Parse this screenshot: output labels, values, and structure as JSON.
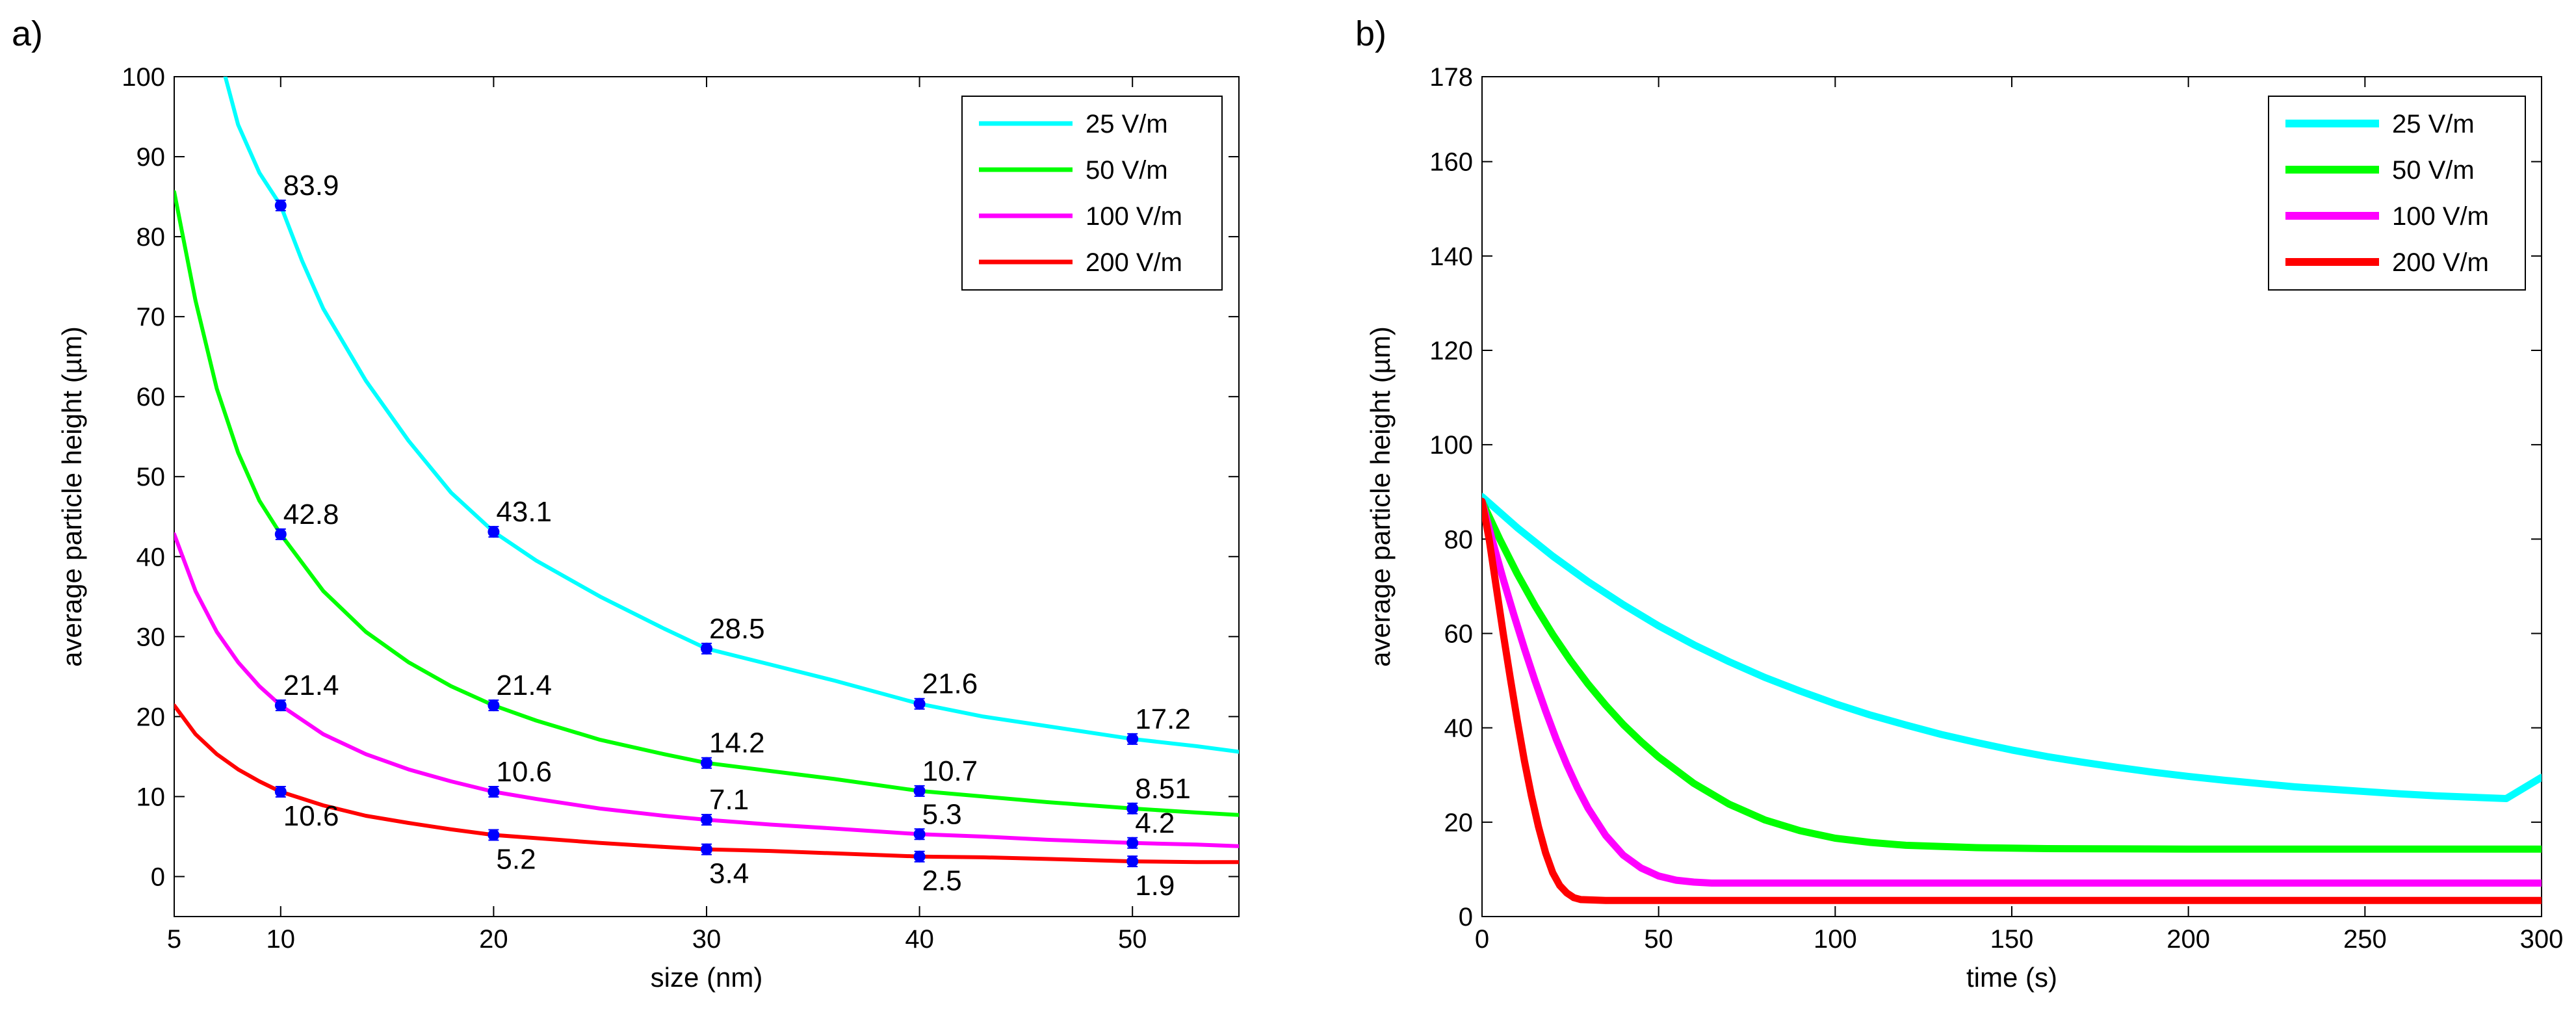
{
  "chart_data": [
    {
      "type": "line",
      "panel_label": "a)",
      "xlabel": "size (nm)",
      "ylabel": "average particle height (µm)",
      "xlim": [
        5,
        55
      ],
      "ylim": [
        -5,
        100
      ],
      "xticks": [
        5,
        10,
        20,
        30,
        40,
        50
      ],
      "yticks": [
        0,
        10,
        20,
        30,
        40,
        50,
        60,
        70,
        80,
        90,
        100
      ],
      "legend_position": "top-right",
      "series": [
        {
          "name": "25 V/m",
          "color": "#00ffff",
          "x": [
            7.4,
            8,
            9,
            10,
            11,
            12,
            14,
            16,
            18,
            20,
            22,
            25,
            28,
            30,
            33,
            36,
            40,
            43,
            46,
            50,
            53,
            55
          ],
          "y": [
            100,
            94,
            88,
            83.9,
            77,
            71,
            62,
            54.5,
            48,
            43.1,
            39.5,
            35,
            31,
            28.5,
            26.5,
            24.5,
            21.6,
            20,
            18.8,
            17.2,
            16.3,
            15.6
          ]
        },
        {
          "name": "50 V/m",
          "color": "#00ff00",
          "x": [
            5,
            6,
            7,
            8,
            9,
            10,
            12,
            14,
            16,
            18,
            20,
            22,
            25,
            28,
            30,
            33,
            36,
            40,
            43,
            46,
            50,
            53,
            55
          ],
          "y": [
            85.6,
            72,
            61,
            53,
            47,
            42.8,
            35.7,
            30.6,
            26.8,
            23.8,
            21.4,
            19.5,
            17.1,
            15.3,
            14.2,
            13.2,
            12.2,
            10.7,
            10,
            9.3,
            8.51,
            8,
            7.7
          ]
        },
        {
          "name": "100 V/m",
          "color": "#ff00ff",
          "x": [
            5,
            6,
            7,
            8,
            9,
            10,
            12,
            14,
            16,
            18,
            20,
            22,
            25,
            28,
            30,
            33,
            36,
            40,
            43,
            46,
            50,
            53,
            55
          ],
          "y": [
            42.8,
            35.7,
            30.6,
            26.8,
            23.8,
            21.4,
            17.8,
            15.3,
            13.4,
            11.9,
            10.6,
            9.7,
            8.5,
            7.6,
            7.1,
            6.5,
            6,
            5.3,
            5,
            4.6,
            4.2,
            4,
            3.8
          ]
        },
        {
          "name": "200 V/m",
          "color": "#ff0000",
          "x": [
            5,
            6,
            7,
            8,
            9,
            10,
            12,
            14,
            16,
            18,
            20,
            22,
            25,
            28,
            30,
            33,
            36,
            40,
            43,
            46,
            50,
            53,
            55
          ],
          "y": [
            21.4,
            17.8,
            15.3,
            13.4,
            11.9,
            10.6,
            8.9,
            7.6,
            6.7,
            5.9,
            5.2,
            4.8,
            4.2,
            3.7,
            3.4,
            3.2,
            2.9,
            2.5,
            2.4,
            2.2,
            1.9,
            1.8,
            1.8
          ]
        }
      ],
      "markers": [
        {
          "x": 10,
          "y": 83.9,
          "label": "83.9",
          "pos": "above"
        },
        {
          "x": 20,
          "y": 43.1,
          "label": "43.1",
          "pos": "above"
        },
        {
          "x": 30,
          "y": 28.5,
          "label": "28.5",
          "pos": "above"
        },
        {
          "x": 40,
          "y": 21.6,
          "label": "21.6",
          "pos": "above"
        },
        {
          "x": 50,
          "y": 17.2,
          "label": "17.2",
          "pos": "above"
        },
        {
          "x": 10,
          "y": 42.8,
          "label": "42.8",
          "pos": "above"
        },
        {
          "x": 20,
          "y": 21.4,
          "label": "21.4",
          "pos": "above"
        },
        {
          "x": 30,
          "y": 14.2,
          "label": "14.2",
          "pos": "above"
        },
        {
          "x": 40,
          "y": 10.7,
          "label": "10.7",
          "pos": "above"
        },
        {
          "x": 50,
          "y": 8.51,
          "label": "8.51",
          "pos": "above"
        },
        {
          "x": 10,
          "y": 21.4,
          "label": "21.4",
          "pos": "above"
        },
        {
          "x": 20,
          "y": 10.6,
          "label": "10.6",
          "pos": "above"
        },
        {
          "x": 30,
          "y": 7.1,
          "label": "7.1",
          "pos": "above"
        },
        {
          "x": 40,
          "y": 5.3,
          "label": "5.3",
          "pos": "above"
        },
        {
          "x": 50,
          "y": 4.2,
          "label": "4.2",
          "pos": "above"
        },
        {
          "x": 10,
          "y": 10.6,
          "label": "10.6",
          "pos": "below"
        },
        {
          "x": 20,
          "y": 5.2,
          "label": "5.2",
          "pos": "below"
        },
        {
          "x": 30,
          "y": 3.4,
          "label": "3.4",
          "pos": "below"
        },
        {
          "x": 40,
          "y": 2.5,
          "label": "2.5",
          "pos": "below"
        },
        {
          "x": 50,
          "y": 1.9,
          "label": "1.9",
          "pos": "below"
        }
      ],
      "marker_color": "#0000ff"
    },
    {
      "type": "line",
      "panel_label": "b)",
      "xlabel": "time (s)",
      "ylabel": "average particle height (µm)",
      "xlim": [
        0,
        300
      ],
      "ylim": [
        0,
        178
      ],
      "xticks": [
        0,
        50,
        100,
        150,
        200,
        250,
        300
      ],
      "yticks": [
        0,
        20,
        40,
        60,
        80,
        100,
        120,
        140,
        160,
        178
      ],
      "legend_position": "top-right",
      "series": [
        {
          "name": "25 V/m",
          "color": "#00ffff",
          "x": [
            0,
            10,
            20,
            30,
            40,
            50,
            60,
            70,
            80,
            90,
            100,
            110,
            120,
            130,
            140,
            150,
            160,
            170,
            180,
            190,
            200,
            210,
            220,
            230,
            240,
            250,
            260,
            270,
            280,
            290,
            300
          ],
          "y": [
            89,
            82.4,
            76.4,
            71,
            66.1,
            61.6,
            57.6,
            54,
            50.7,
            47.8,
            45.1,
            42.7,
            40.6,
            38.6,
            36.9,
            35.3,
            33.9,
            32.7,
            31.6,
            30.6,
            29.7,
            28.9,
            28.2,
            27.5,
            27,
            26.5,
            26,
            25.6,
            25.3,
            25,
            29.5
          ]
        },
        {
          "name": "50 V/m",
          "color": "#00ff00",
          "x": [
            0,
            5,
            10,
            15,
            20,
            25,
            30,
            35,
            40,
            45,
            50,
            60,
            70,
            80,
            90,
            100,
            110,
            120,
            140,
            160,
            200,
            250,
            300
          ],
          "y": [
            88,
            80,
            72.6,
            65.9,
            59.8,
            54.3,
            49.3,
            44.8,
            40.7,
            37.1,
            33.8,
            28.2,
            23.8,
            20.5,
            18.2,
            16.6,
            15.7,
            15.1,
            14.6,
            14.4,
            14.3,
            14.3,
            14.3
          ]
        },
        {
          "name": "100 V/m",
          "color": "#ff00ff",
          "x": [
            0,
            3,
            6,
            9,
            12,
            15,
            18,
            21,
            24,
            27,
            30,
            35,
            40,
            45,
            50,
            55,
            60,
            65,
            80,
            100,
            150,
            200,
            250,
            300
          ],
          "y": [
            88,
            79.5,
            71.5,
            64,
            56.8,
            50,
            43.6,
            37.6,
            32.2,
            27.3,
            23,
            17.2,
            13,
            10.3,
            8.6,
            7.7,
            7.3,
            7.1,
            7.1,
            7.1,
            7.1,
            7.1,
            7.1,
            7.1
          ]
        },
        {
          "name": "200 V/m",
          "color": "#ff0000",
          "x": [
            0,
            2,
            4,
            6,
            8,
            10,
            12,
            14,
            16,
            18,
            20,
            22,
            24,
            26,
            28,
            35,
            50,
            100,
            150,
            200,
            250,
            300
          ],
          "y": [
            88,
            80,
            70,
            60,
            50.5,
            41.5,
            33,
            25.5,
            19,
            13.5,
            9.3,
            6.6,
            5,
            4,
            3.6,
            3.4,
            3.4,
            3.4,
            3.4,
            3.4,
            3.4,
            3.4
          ]
        }
      ]
    }
  ]
}
